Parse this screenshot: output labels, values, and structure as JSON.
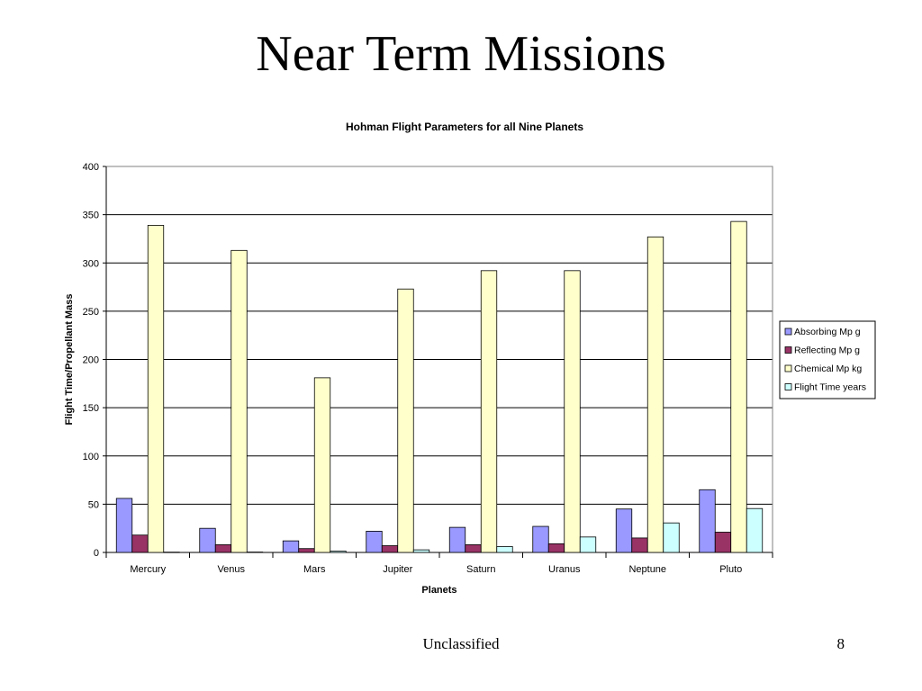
{
  "slide": {
    "title": "Near Term Missions",
    "footer": "Unclassified",
    "page_number": "8"
  },
  "chart_data": {
    "type": "bar",
    "title": "Hohman Flight Parameters for all Nine Planets",
    "xlabel": "Planets",
    "ylabel": "Flight Time/Propellant Mass",
    "ylim": [
      0,
      400
    ],
    "yticks": [
      0,
      50,
      100,
      150,
      200,
      250,
      300,
      350,
      400
    ],
    "grid": true,
    "legend_position": "right",
    "categories": [
      "Mercury",
      "Venus",
      "Mars",
      "Jupiter",
      "Saturn",
      "Uranus",
      "Neptune",
      "Pluto"
    ],
    "series": [
      {
        "name": "Absorbing Mp g",
        "color": "#9999ff",
        "values": [
          56,
          25,
          12,
          22,
          26,
          27,
          45,
          65
        ]
      },
      {
        "name": "Reflecting Mp g",
        "color": "#993366",
        "values": [
          18,
          8,
          4,
          7,
          8,
          9,
          15,
          21
        ]
      },
      {
        "name": "Chemical Mp kg",
        "color": "#ffffcc",
        "values": [
          339,
          313,
          181,
          273,
          292,
          292,
          327,
          343
        ]
      },
      {
        "name": "Flight Time years",
        "color": "#ccffff",
        "values": [
          0.3,
          0.4,
          1.4,
          2.7,
          6.1,
          16,
          30.6,
          45.5
        ]
      }
    ]
  }
}
